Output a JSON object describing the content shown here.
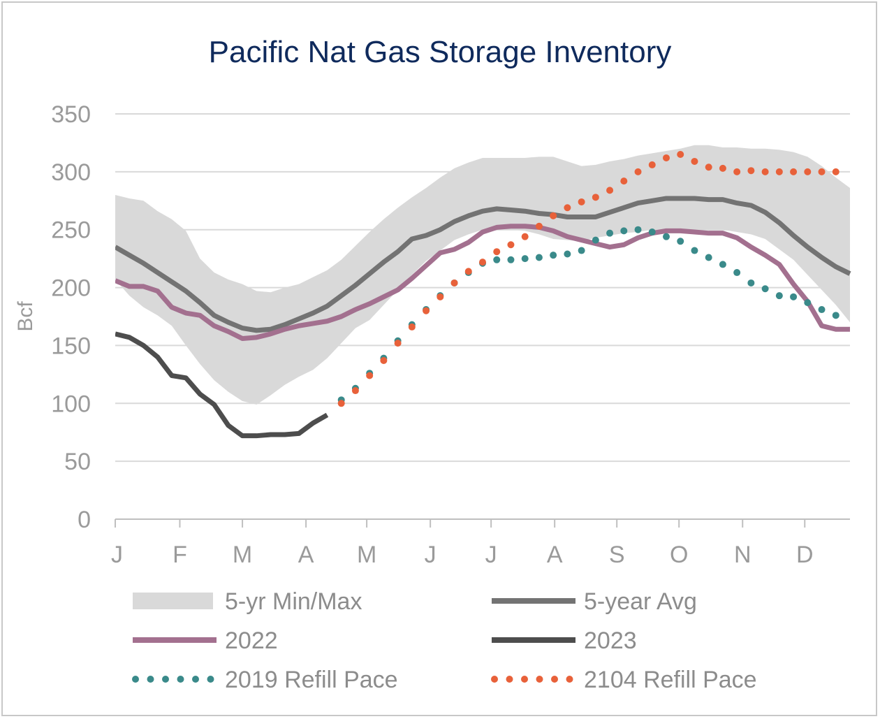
{
  "chart_data": {
    "type": "line",
    "title": "Pacific Nat Gas Storage Inventory",
    "ylabel": "Bcf",
    "xlabel": "",
    "ylim": [
      0,
      350
    ],
    "yticks": [
      0,
      50,
      100,
      150,
      200,
      250,
      300,
      350
    ],
    "xlim": [
      0,
      52
    ],
    "month_labels": [
      "J",
      "F",
      "M",
      "A",
      "M",
      "J",
      "J",
      "A",
      "S",
      "O",
      "N",
      "D"
    ],
    "month_positions": [
      0,
      4.57,
      9,
      13.5,
      17.8,
      22.3,
      26.6,
      31.1,
      35.5,
      39.9,
      44.4,
      48.8
    ],
    "grid": true,
    "legend_position": "bottom",
    "band": {
      "name": "5-yr Min/Max",
      "color": "#d9d9d9",
      "x": [
        0,
        1,
        2,
        3,
        4,
        5,
        6,
        7,
        8,
        9,
        10,
        11,
        12,
        13,
        14,
        15,
        16,
        17,
        18,
        19,
        20,
        21,
        22,
        23,
        24,
        25,
        26,
        27,
        28,
        29,
        30,
        31,
        32,
        33,
        34,
        35,
        36,
        37,
        38,
        39,
        40,
        41,
        42,
        43,
        44,
        45,
        46,
        47,
        48,
        49,
        50,
        51,
        52
      ],
      "max": [
        280,
        277,
        275,
        266,
        259,
        249,
        225,
        213,
        207,
        203,
        197,
        196,
        200,
        203,
        209,
        215,
        224,
        236,
        248,
        259,
        269,
        278,
        286,
        295,
        303,
        308,
        312,
        312,
        312,
        312,
        313,
        313,
        309,
        305,
        306,
        309,
        311,
        314,
        316,
        318,
        320,
        323,
        323,
        321,
        321,
        320,
        320,
        319,
        317,
        313,
        305,
        295,
        286
      ],
      "min": [
        207,
        193,
        183,
        176,
        167,
        150,
        134,
        120,
        110,
        102,
        99,
        107,
        116,
        123,
        129,
        139,
        152,
        165,
        172,
        185,
        198,
        211,
        223,
        232,
        241,
        246,
        250,
        250,
        250,
        249,
        246,
        242,
        241,
        240,
        243,
        245,
        247,
        248,
        250,
        250,
        251,
        250,
        250,
        250,
        248,
        246,
        242,
        233,
        224,
        211,
        198,
        185,
        170
      ]
    },
    "series": [
      {
        "name": "5-year Avg",
        "color": "#737373",
        "style": "solid",
        "x": [
          0,
          1,
          2,
          3,
          4,
          5,
          6,
          7,
          8,
          9,
          10,
          11,
          12,
          13,
          14,
          15,
          16,
          17,
          18,
          19,
          20,
          21,
          22,
          23,
          24,
          25,
          26,
          27,
          28,
          29,
          30,
          31,
          32,
          33,
          34,
          35,
          36,
          37,
          38,
          39,
          40,
          41,
          42,
          43,
          44,
          45,
          46,
          47,
          48,
          49,
          50,
          51,
          52
        ],
        "values": [
          235,
          228,
          221,
          213,
          205,
          197,
          187,
          176,
          170,
          165,
          163,
          164,
          168,
          173,
          178,
          184,
          193,
          202,
          212,
          222,
          231,
          242,
          245,
          250,
          257,
          262,
          266,
          268,
          267,
          266,
          264,
          263,
          261,
          261,
          261,
          265,
          269,
          273,
          275,
          277,
          277,
          277,
          276,
          276,
          273,
          271,
          265,
          256,
          245,
          235,
          226,
          218,
          212
        ]
      },
      {
        "name": "2022",
        "color": "#a3708f",
        "style": "solid",
        "x": [
          0,
          1,
          2,
          3,
          4,
          5,
          6,
          7,
          8,
          9,
          10,
          11,
          12,
          13,
          14,
          15,
          16,
          17,
          18,
          19,
          20,
          21,
          22,
          23,
          24,
          25,
          26,
          27,
          28,
          29,
          30,
          31,
          32,
          33,
          34,
          35,
          36,
          37,
          38,
          39,
          40,
          41,
          42,
          43,
          44,
          45,
          46,
          47,
          48,
          49,
          50,
          51,
          52
        ],
        "values": [
          206,
          201,
          201,
          197,
          183,
          178,
          176,
          167,
          162,
          156,
          157,
          160,
          164,
          167,
          169,
          171,
          175,
          181,
          186,
          192,
          198,
          208,
          219,
          230,
          233,
          239,
          248,
          252,
          253,
          253,
          252,
          249,
          244,
          241,
          238,
          235,
          237,
          243,
          247,
          249,
          249,
          248,
          247,
          247,
          243,
          235,
          228,
          220,
          203,
          188,
          167,
          164,
          164
        ]
      },
      {
        "name": "2023",
        "color": "#4d4d4d",
        "style": "solid",
        "x": [
          0,
          1,
          2,
          3,
          4,
          5,
          6,
          7,
          8,
          9,
          10,
          11,
          12,
          13,
          14,
          15
        ],
        "values": [
          160,
          157,
          150,
          140,
          124,
          122,
          108,
          99,
          81,
          72,
          72,
          73,
          73,
          74,
          83,
          90
        ]
      },
      {
        "name": "2019 Refill Pace",
        "color": "#3a8a8a",
        "style": "dotted",
        "x": [
          16,
          17,
          18,
          19,
          20,
          21,
          22,
          23,
          24,
          25,
          26,
          27,
          28,
          29,
          30,
          31,
          32,
          33,
          34,
          35,
          36,
          37,
          38,
          39,
          40,
          41,
          42,
          43,
          44,
          45,
          46,
          47,
          48,
          49,
          50,
          51
        ],
        "values": [
          103,
          113,
          126,
          139,
          154,
          168,
          181,
          193,
          204,
          213,
          221,
          224,
          224,
          225,
          226,
          228,
          229,
          232,
          241,
          247,
          249,
          250,
          248,
          244,
          240,
          232,
          226,
          220,
          213,
          204,
          199,
          193,
          192,
          187,
          181,
          176
        ]
      },
      {
        "name": "2104 Refill Pace",
        "color": "#e8613a",
        "style": "dotted",
        "x": [
          16,
          17,
          18,
          19,
          20,
          21,
          22,
          23,
          24,
          25,
          26,
          27,
          28,
          29,
          30,
          31,
          32,
          33,
          34,
          35,
          36,
          37,
          38,
          39,
          40,
          41,
          42,
          43,
          44,
          45,
          46,
          47,
          48,
          49,
          50,
          51
        ],
        "values": [
          100,
          111,
          124,
          137,
          152,
          166,
          180,
          192,
          204,
          214,
          222,
          231,
          237,
          244,
          253,
          262,
          269,
          274,
          278,
          284,
          292,
          300,
          306,
          312,
          315,
          309,
          304,
          303,
          300,
          301,
          300,
          300,
          300,
          300,
          300,
          300
        ]
      }
    ]
  }
}
